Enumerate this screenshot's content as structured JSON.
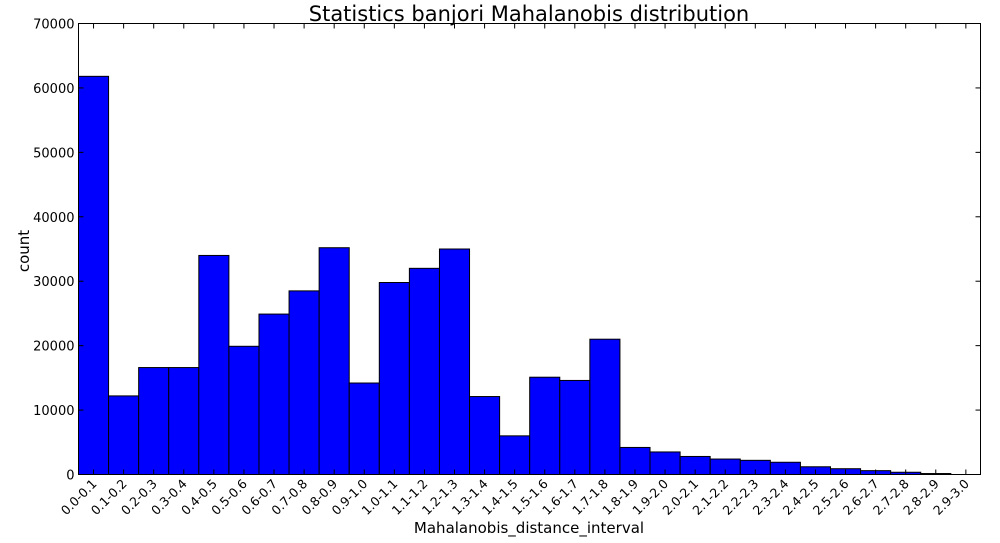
{
  "chart_data": {
    "type": "bar",
    "title": "Statistics banjori Mahalanobis distribution",
    "xlabel": "Mahalanobis_distance_interval",
    "ylabel": "count",
    "ylim": [
      0,
      70000
    ],
    "yticks": [
      "0",
      "10000",
      "20000",
      "30000",
      "40000",
      "50000",
      "60000",
      "70000"
    ],
    "grid": false,
    "bar_color": "#0000ff",
    "categories": [
      "0.0-0.1",
      "0.1-0.2",
      "0.2-0.3",
      "0.3-0.4",
      "0.4-0.5",
      "0.5-0.6",
      "0.6-0.7",
      "0.7-0.8",
      "0.8-0.9",
      "0.9-1.0",
      "1.0-1.1",
      "1.1-1.2",
      "1.2-1.3",
      "1.3-1.4",
      "1.4-1.5",
      "1.5-1.6",
      "1.6-1.7",
      "1.7-1.8",
      "1.8-1.9",
      "1.9-2.0",
      "2.0-2.1",
      "2.1-2.2",
      "2.2-2.3",
      "2.3-2.4",
      "2.4-2.5",
      "2.5-2.6",
      "2.6-2.7",
      "2.7-2.8",
      "2.8-2.9",
      "2.9-3.0"
    ],
    "values": [
      61800,
      12200,
      16600,
      16600,
      34000,
      19900,
      24900,
      28500,
      35200,
      14200,
      29800,
      32000,
      35000,
      12100,
      6000,
      15100,
      14600,
      21000,
      4200,
      3500,
      2800,
      2400,
      2200,
      1900,
      1200,
      900,
      600,
      350,
      150,
      0
    ]
  }
}
